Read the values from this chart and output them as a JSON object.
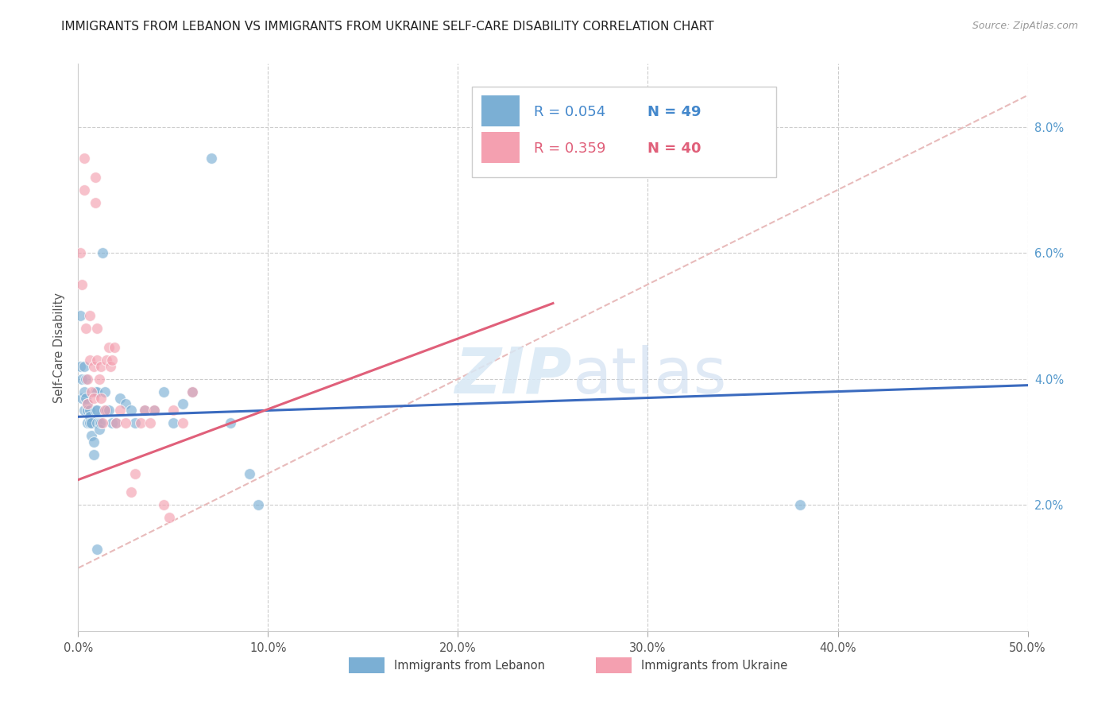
{
  "title": "IMMIGRANTS FROM LEBANON VS IMMIGRANTS FROM UKRAINE SELF-CARE DISABILITY CORRELATION CHART",
  "source": "Source: ZipAtlas.com",
  "ylabel": "Self-Care Disability",
  "xlim": [
    0.0,
    0.5
  ],
  "ylim": [
    0.0,
    0.09
  ],
  "xtick_vals": [
    0.0,
    0.1,
    0.2,
    0.3,
    0.4,
    0.5
  ],
  "xtick_labels": [
    "0.0%",
    "10.0%",
    "20.0%",
    "30.0%",
    "40.0%",
    "50.0%"
  ],
  "ytick_vals": [
    0.02,
    0.04,
    0.06,
    0.08
  ],
  "ytick_labels": [
    "2.0%",
    "4.0%",
    "6.0%",
    "8.0%"
  ],
  "legend_r1": "0.054",
  "legend_n1": "49",
  "legend_r2": "0.359",
  "legend_n2": "40",
  "color_lebanon": "#7BAFD4",
  "color_ukraine": "#F4A0B0",
  "color_lebanon_line": "#3B6BBF",
  "color_ukraine_line": "#E0607A",
  "color_diagonal": "#E8BBBB",
  "background_color": "#FFFFFF",
  "watermark_zip": "ZIP",
  "watermark_atlas": "atlas",
  "lebanon_x": [
    0.001,
    0.001,
    0.002,
    0.002,
    0.003,
    0.003,
    0.003,
    0.004,
    0.004,
    0.005,
    0.005,
    0.005,
    0.006,
    0.006,
    0.006,
    0.007,
    0.007,
    0.008,
    0.008,
    0.009,
    0.009,
    0.01,
    0.01,
    0.01,
    0.011,
    0.011,
    0.012,
    0.013,
    0.014,
    0.015,
    0.016,
    0.018,
    0.02,
    0.022,
    0.025,
    0.028,
    0.03,
    0.035,
    0.04,
    0.045,
    0.05,
    0.055,
    0.06,
    0.07,
    0.08,
    0.09,
    0.095,
    0.01,
    0.38
  ],
  "lebanon_y": [
    0.05,
    0.042,
    0.04,
    0.037,
    0.042,
    0.038,
    0.035,
    0.04,
    0.037,
    0.036,
    0.035,
    0.033,
    0.035,
    0.034,
    0.033,
    0.033,
    0.031,
    0.03,
    0.028,
    0.038,
    0.035,
    0.038,
    0.035,
    0.033,
    0.033,
    0.032,
    0.033,
    0.06,
    0.038,
    0.035,
    0.035,
    0.033,
    0.033,
    0.037,
    0.036,
    0.035,
    0.033,
    0.035,
    0.035,
    0.038,
    0.033,
    0.036,
    0.038,
    0.075,
    0.033,
    0.025,
    0.02,
    0.013,
    0.02
  ],
  "ukraine_x": [
    0.001,
    0.002,
    0.003,
    0.003,
    0.004,
    0.005,
    0.005,
    0.006,
    0.006,
    0.007,
    0.008,
    0.008,
    0.009,
    0.009,
    0.01,
    0.01,
    0.011,
    0.012,
    0.012,
    0.013,
    0.014,
    0.015,
    0.016,
    0.017,
    0.018,
    0.019,
    0.02,
    0.022,
    0.025,
    0.028,
    0.03,
    0.033,
    0.035,
    0.038,
    0.04,
    0.045,
    0.048,
    0.05,
    0.055,
    0.06
  ],
  "ukraine_y": [
    0.06,
    0.055,
    0.075,
    0.07,
    0.048,
    0.04,
    0.036,
    0.05,
    0.043,
    0.038,
    0.042,
    0.037,
    0.072,
    0.068,
    0.048,
    0.043,
    0.04,
    0.042,
    0.037,
    0.033,
    0.035,
    0.043,
    0.045,
    0.042,
    0.043,
    0.045,
    0.033,
    0.035,
    0.033,
    0.022,
    0.025,
    0.033,
    0.035,
    0.033,
    0.035,
    0.02,
    0.018,
    0.035,
    0.033,
    0.038
  ]
}
